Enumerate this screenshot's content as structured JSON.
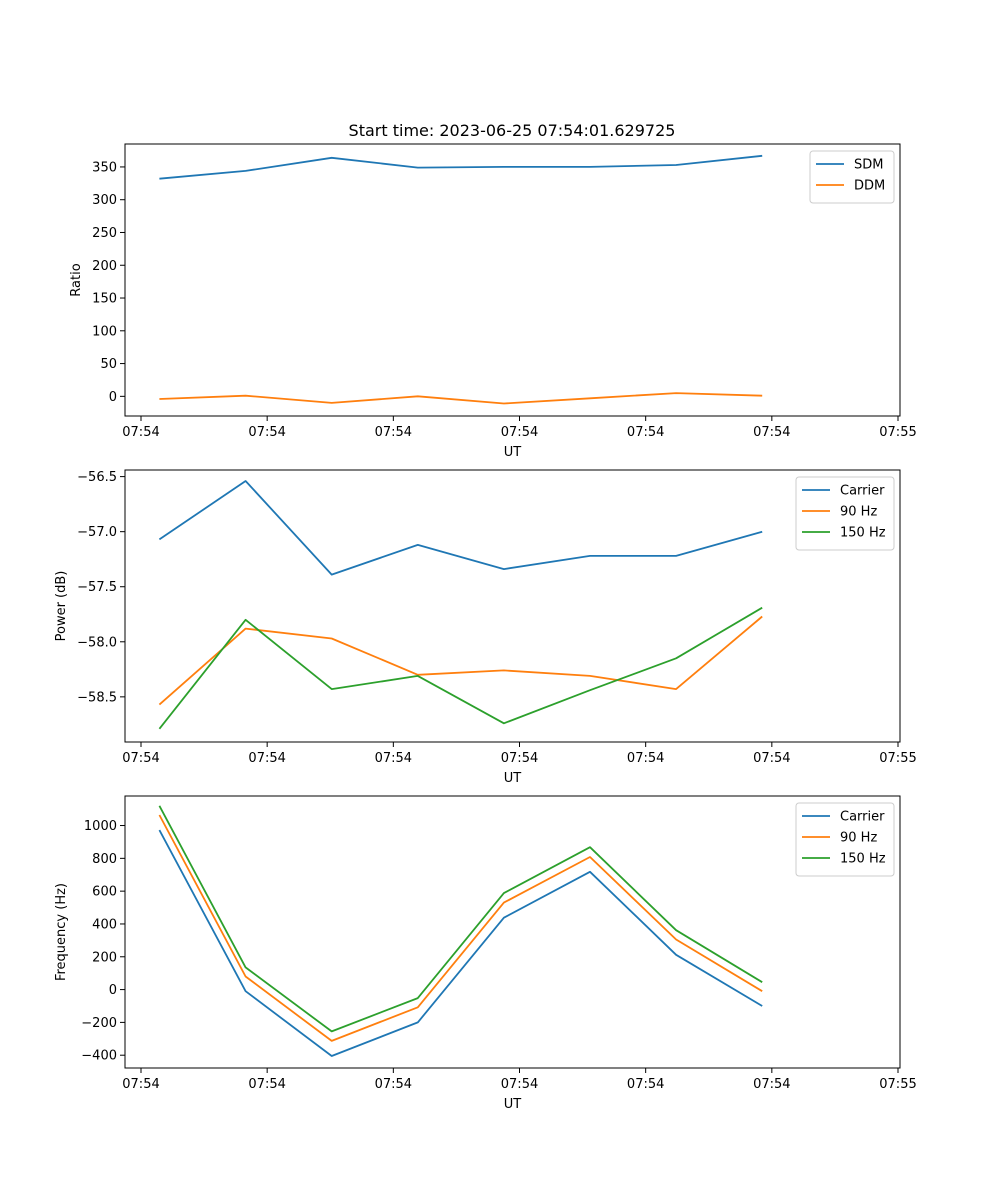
{
  "figure": {
    "title": "Start time: 2023-06-25 07:54:01.629725"
  },
  "chart_data": [
    {
      "type": "line",
      "xlabel": "UT",
      "ylabel": "Ratio",
      "x_ticks": [
        "07:54",
        "07:54",
        "07:54",
        "07:54",
        "07:54",
        "07:54",
        "07:55"
      ],
      "xlim": [
        -0.4,
        8.6
      ],
      "ylim": [
        -30,
        385
      ],
      "y_ticks": [
        "0",
        "50",
        "100",
        "150",
        "200",
        "250",
        "300",
        "350"
      ],
      "y_tick_values": [
        0,
        50,
        100,
        150,
        200,
        250,
        300,
        350
      ],
      "legend_position": "top-right",
      "grid": false,
      "x": [
        0,
        1,
        2,
        3,
        4,
        5,
        6,
        7
      ],
      "series": [
        {
          "name": "SDM",
          "color": "#1f77b4",
          "values": [
            332,
            344,
            364,
            349,
            350,
            350,
            353,
            367
          ]
        },
        {
          "name": "DDM",
          "color": "#ff7f0e",
          "values": [
            -4,
            1,
            -10,
            0,
            -11,
            -3,
            5,
            1
          ]
        }
      ]
    },
    {
      "type": "line",
      "xlabel": "UT",
      "ylabel": "Power (dB)",
      "x_ticks": [
        "07:54",
        "07:54",
        "07:54",
        "07:54",
        "07:54",
        "07:54",
        "07:55"
      ],
      "xlim": [
        -0.4,
        8.6
      ],
      "ylim": [
        -58.91,
        -56.44
      ],
      "y_ticks": [
        "−58.5",
        "−58.0",
        "−57.5",
        "−57.0",
        "−56.5"
      ],
      "y_tick_values": [
        -58.5,
        -58.0,
        -57.5,
        -57.0,
        -56.5
      ],
      "legend_position": "top-right",
      "grid": false,
      "x": [
        0,
        1,
        2,
        3,
        4,
        5,
        6,
        7
      ],
      "series": [
        {
          "name": "Carrier",
          "color": "#1f77b4",
          "values": [
            -57.07,
            -56.54,
            -57.39,
            -57.12,
            -57.34,
            -57.22,
            -57.22,
            -57.0
          ]
        },
        {
          "name": "90 Hz",
          "color": "#ff7f0e",
          "values": [
            -58.57,
            -57.88,
            -57.97,
            -58.3,
            -58.26,
            -58.31,
            -58.43,
            -57.77
          ]
        },
        {
          "name": "150 Hz",
          "color": "#2ca02c",
          "values": [
            -58.79,
            -57.8,
            -58.43,
            -58.31,
            -58.74,
            -58.44,
            -58.15,
            -57.69
          ]
        }
      ]
    },
    {
      "type": "line",
      "xlabel": "UT",
      "ylabel": "Frequency (Hz)",
      "x_ticks": [
        "07:54",
        "07:54",
        "07:54",
        "07:54",
        "07:54",
        "07:54",
        "07:55"
      ],
      "xlim": [
        -0.4,
        8.6
      ],
      "ylim": [
        -478,
        1180
      ],
      "y_ticks": [
        "−400",
        "−200",
        "0",
        "200",
        "400",
        "600",
        "800",
        "1000"
      ],
      "y_tick_values": [
        -400,
        -200,
        0,
        200,
        400,
        600,
        800,
        1000
      ],
      "legend_position": "top-right",
      "grid": false,
      "x": [
        0,
        1,
        2,
        3,
        4,
        5,
        6,
        7
      ],
      "series": [
        {
          "name": "Carrier",
          "color": "#1f77b4",
          "values": [
            972,
            -10,
            -405,
            -200,
            438,
            718,
            212,
            -100
          ]
        },
        {
          "name": "90 Hz",
          "color": "#ff7f0e",
          "values": [
            1064,
            80,
            -313,
            -108,
            530,
            808,
            305,
            -10
          ]
        },
        {
          "name": "150 Hz",
          "color": "#2ca02c",
          "values": [
            1120,
            135,
            -255,
            -52,
            588,
            868,
            362,
            45
          ]
        }
      ]
    }
  ]
}
